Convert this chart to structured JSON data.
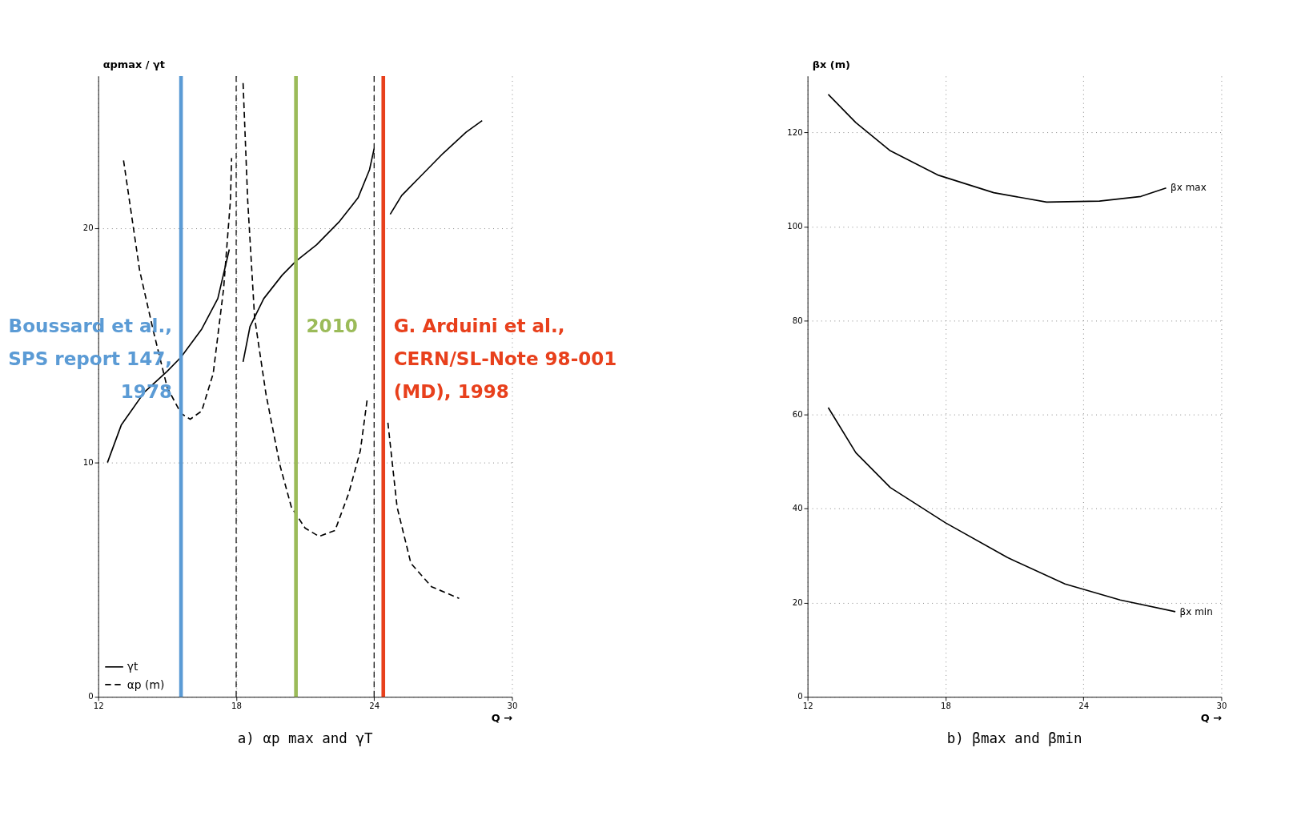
{
  "chart_data": [
    {
      "type": "line",
      "title": "a) αp max and γT",
      "xlabel": "Q →",
      "ylabel": "αpmax / γt",
      "xlim": [
        12,
        30
      ],
      "ylim": [
        0,
        26.5
      ],
      "xticks": [
        12,
        18,
        24,
        30
      ],
      "yticks": [
        0,
        10,
        20
      ],
      "grid": true,
      "legend": "bottom left",
      "series": [
        {
          "name": "γt",
          "color": "#000000",
          "line_style": "solid",
          "x": [
            12.4,
            13.0,
            14.0,
            15.0,
            15.6,
            16.5,
            17.2,
            17.7,
            18.0,
            18.3,
            18.6,
            19.2,
            20.0,
            20.6,
            21.5,
            22.5,
            23.3,
            23.8,
            24.0,
            24.2,
            24.4,
            24.7,
            25.2,
            26.0,
            27.0,
            28.0,
            28.7
          ],
          "values": [
            10.0,
            11.6,
            13.0,
            13.9,
            14.5,
            15.7,
            17.0,
            19.1,
            null,
            14.3,
            15.8,
            17.0,
            18.0,
            18.6,
            19.3,
            20.3,
            21.3,
            22.5,
            23.4,
            null,
            null,
            20.6,
            21.4,
            22.2,
            23.2,
            24.1,
            24.6
          ]
        },
        {
          "name": "αp (m)",
          "color": "#000000",
          "line_style": "dashed",
          "x": [
            13.1,
            13.8,
            14.4,
            15.0,
            15.6,
            16.0,
            16.5,
            17.0,
            17.45,
            17.75,
            17.8,
            18.0,
            18.3,
            18.5,
            18.8,
            19.3,
            19.9,
            20.4,
            21.0,
            21.6,
            22.3,
            22.9,
            23.4,
            23.7,
            24.0,
            24.4,
            24.6,
            25.0,
            25.6,
            26.5,
            27.7
          ],
          "values": [
            22.9,
            18.2,
            15.6,
            13.2,
            12.1,
            11.85,
            12.2,
            13.8,
            17.4,
            21.2,
            23.0,
            null,
            26.2,
            21.2,
            16.2,
            12.9,
            9.9,
            8.1,
            7.2,
            6.85,
            7.1,
            8.7,
            10.5,
            12.7,
            null,
            null,
            11.7,
            8.1,
            5.7,
            4.7,
            4.2
          ]
        }
      ],
      "ref_lines": [
        {
          "axis": "x",
          "value": 18,
          "line_style": "dashed",
          "color": "#000000"
        },
        {
          "axis": "x",
          "value": 24,
          "line_style": "dashed",
          "color": "#000000"
        },
        {
          "axis": "x",
          "value": 15.6,
          "line_style": "solid",
          "color": "#5b9bd5"
        },
        {
          "axis": "x",
          "value": 20.6,
          "line_style": "solid",
          "color": "#9bbb59"
        },
        {
          "axis": "x",
          "value": 24.4,
          "line_style": "solid",
          "color": "#e8401c"
        }
      ],
      "annotations": [
        {
          "text": "Boussard et al.,\nSPS report 147,\n1978",
          "x": 15.6,
          "y": 15.8
        },
        {
          "text": "2010",
          "x": 20.6,
          "y": 15.8
        },
        {
          "text": "G. Arduini et al.,\nCERN/SL-Note 98-001\n(MD), 1998",
          "x": 24.4,
          "y": 15.8
        }
      ]
    },
    {
      "type": "line",
      "title": "b) βmax and βmin",
      "xlabel": "Q →",
      "ylabel": "βx (m)",
      "xlim": [
        12,
        30
      ],
      "ylim": [
        0,
        132
      ],
      "xticks": [
        12,
        18,
        24,
        30
      ],
      "yticks": [
        0,
        20,
        40,
        60,
        80,
        100,
        120
      ],
      "grid": true,
      "series": [
        {
          "name": "βx max",
          "color": "#000000",
          "line_style": "solid",
          "x": [
            12.9,
            14.1,
            15.6,
            17.7,
            20.1,
            22.4,
            24.7,
            26.5,
            27.6
          ],
          "values": [
            128.1,
            122.1,
            116.1,
            110.9,
            107.2,
            105.2,
            105.4,
            106.4,
            108.2
          ]
        },
        {
          "name": "βx min",
          "color": "#000000",
          "line_style": "solid",
          "x": [
            12.9,
            14.1,
            15.6,
            18.0,
            20.7,
            23.2,
            25.6,
            28.0
          ],
          "values": [
            61.5,
            51.9,
            44.5,
            37.0,
            29.6,
            24.0,
            20.6,
            18.1
          ]
        }
      ]
    }
  ]
}
